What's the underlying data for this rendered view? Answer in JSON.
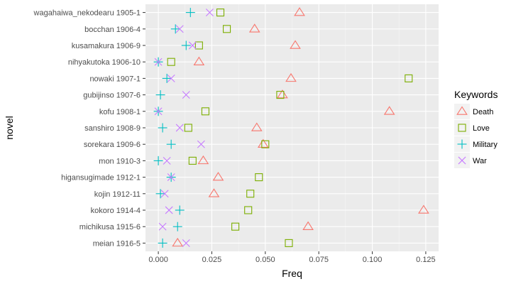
{
  "chart_data": {
    "type": "scatter",
    "xlabel": "Freq",
    "ylabel": "novel",
    "xlim": [
      -0.006,
      0.131
    ],
    "x_ticks": [
      "0.000",
      "0.025",
      "0.050",
      "0.075",
      "0.100",
      "0.125"
    ],
    "x_tick_values": [
      0,
      0.025,
      0.05,
      0.075,
      0.1,
      0.125
    ],
    "grid": true,
    "legend_position": "right",
    "legend_title": "Keywords",
    "categories": [
      "wagahaiwa_nekodearu 1905-1",
      "bocchan 1906-4",
      "kusamakura 1906-9",
      "nihyakutoka 1906-10",
      "nowaki 1907-1",
      "gubijinso 1907-6",
      "kofu 1908-1",
      "sanshiro 1908-9",
      "sorekara 1909-6",
      "mon 1910-3",
      "higansugimade 1912-1",
      "kojin 1912-11",
      "kokoro 1914-4",
      "michikusa 1915-6",
      "meian 1916-5"
    ],
    "series": [
      {
        "name": "Death",
        "shape": "triangle",
        "color": "#F8766D",
        "values": [
          0.066,
          0.045,
          0.064,
          0.019,
          0.062,
          0.058,
          0.108,
          0.046,
          0.049,
          0.021,
          0.028,
          0.026,
          0.124,
          0.07,
          0.009
        ]
      },
      {
        "name": "Love",
        "shape": "square",
        "color": "#7CAE00",
        "values": [
          0.029,
          0.032,
          0.019,
          0.006,
          0.117,
          0.057,
          0.022,
          0.014,
          0.05,
          0.016,
          0.047,
          0.043,
          0.042,
          0.036,
          0.061
        ]
      },
      {
        "name": "Military",
        "shape": "plus",
        "color": "#00BFC4",
        "values": [
          0.015,
          0.008,
          0.013,
          0.0,
          0.004,
          0.001,
          0.0,
          0.002,
          0.006,
          0.0,
          0.006,
          0.001,
          0.01,
          0.009,
          0.002
        ]
      },
      {
        "name": "War",
        "shape": "cross",
        "color": "#C77CFF",
        "values": [
          0.024,
          0.01,
          0.016,
          0.0,
          0.006,
          0.013,
          0.0,
          0.01,
          0.02,
          0.004,
          0.006,
          0.003,
          0.005,
          0.002,
          0.013
        ]
      }
    ]
  }
}
